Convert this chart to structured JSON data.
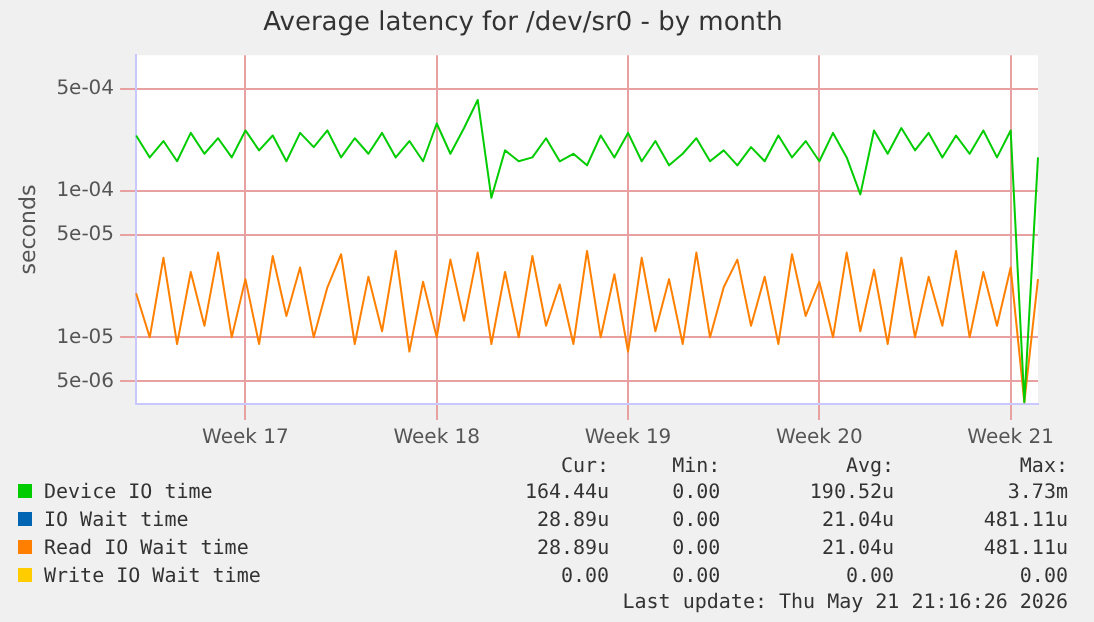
{
  "chart_data": {
    "type": "line",
    "title": "Average latency for /dev/sr0 - by month",
    "ylabel": "seconds",
    "categories": [
      null,
      null,
      null,
      null,
      null,
      null,
      null,
      null,
      "Week 17",
      null,
      null,
      null,
      null,
      null,
      null,
      null,
      null,
      null,
      null,
      null,
      null,
      null,
      "Week 18",
      null,
      null,
      null,
      null,
      null,
      null,
      null,
      null,
      null,
      null,
      null,
      null,
      null,
      "Week 19",
      null,
      null,
      null,
      null,
      null,
      null,
      null,
      null,
      null,
      null,
      null,
      null,
      null,
      "Week 20",
      null,
      null,
      null,
      null,
      null,
      null,
      null,
      null,
      null,
      null,
      null,
      null,
      null,
      "Week 21",
      null,
      null
    ],
    "ylim": [
      3.5e-06,
      0.00085
    ],
    "log": true,
    "yticks": [
      {
        "value": 5e-06,
        "label": "5e-06"
      },
      {
        "value": 1e-05,
        "label": "1e-05"
      },
      {
        "value": 5e-05,
        "label": "5e-05"
      },
      {
        "value": 0.0001,
        "label": "1e-04"
      },
      {
        "value": 0.0005,
        "label": "5e-04"
      }
    ],
    "grid": true,
    "legend": "bottom",
    "marker": "none",
    "line_style": "solid",
    "series": [
      {
        "name": "Device IO time",
        "color": "#00cc00",
        "values": [
          0.00024,
          0.00017,
          0.00022,
          0.00016,
          0.00025,
          0.00018,
          0.00023,
          0.00017,
          0.00026,
          0.00019,
          0.00024,
          0.00016,
          0.00025,
          0.0002,
          0.00026,
          0.00017,
          0.00023,
          0.00018,
          0.00025,
          0.00017,
          0.00022,
          0.00016,
          0.00029,
          0.00018,
          0.00027,
          0.00042,
          9e-05,
          0.00019,
          0.00016,
          0.00017,
          0.00023,
          0.00016,
          0.00018,
          0.00015,
          0.00024,
          0.00017,
          0.00025,
          0.00016,
          0.00022,
          0.00015,
          0.00018,
          0.00023,
          0.00016,
          0.00019,
          0.00015,
          0.0002,
          0.00016,
          0.00024,
          0.00017,
          0.00022,
          0.00016,
          0.00025,
          0.00017,
          9.5e-05,
          0.00026,
          0.00018,
          0.00027,
          0.00019,
          0.00025,
          0.00017,
          0.00024,
          0.00018,
          0.00026,
          0.00017,
          0.00026,
          3.6e-06,
          0.00017
        ]
      },
      {
        "name": "IO Wait time",
        "color": "#0066b3",
        "values": [
          null,
          null,
          null,
          null,
          null,
          null,
          null,
          null,
          null,
          null,
          null,
          null,
          null,
          null,
          null,
          null,
          null,
          null,
          null,
          null,
          null,
          null,
          null,
          null,
          null,
          null,
          null,
          null,
          null,
          null,
          null,
          null,
          null,
          null,
          null,
          null,
          null,
          null,
          null,
          null,
          null,
          null,
          null,
          null,
          null,
          null,
          null,
          null,
          null,
          null,
          null,
          null,
          null,
          null,
          null,
          null,
          null,
          null,
          null,
          null,
          null,
          null,
          null,
          null,
          null,
          null,
          null
        ]
      },
      {
        "name": "Read IO Wait time",
        "color": "#ff8000",
        "values": [
          2e-05,
          1e-05,
          3.5e-05,
          9e-06,
          2.8e-05,
          1.2e-05,
          3.8e-05,
          1e-05,
          2.5e-05,
          9e-06,
          3.6e-05,
          1.4e-05,
          3e-05,
          1e-05,
          2.2e-05,
          3.7e-05,
          9e-06,
          2.6e-05,
          1.1e-05,
          3.9e-05,
          8e-06,
          2.4e-05,
          1e-05,
          3.4e-05,
          1.3e-05,
          3.8e-05,
          9e-06,
          2.8e-05,
          1e-05,
          3.6e-05,
          1.2e-05,
          2.3e-05,
          9e-06,
          3.9e-05,
          1e-05,
          2.7e-05,
          8e-06,
          3.5e-05,
          1.1e-05,
          2.5e-05,
          9e-06,
          3.8e-05,
          1e-05,
          2.2e-05,
          3.4e-05,
          1.2e-05,
          2.6e-05,
          9e-06,
          3.7e-05,
          1.4e-05,
          2.4e-05,
          1e-05,
          3.8e-05,
          1.1e-05,
          2.9e-05,
          9e-06,
          3.5e-05,
          1e-05,
          2.6e-05,
          1.2e-05,
          3.9e-05,
          1e-05,
          2.8e-05,
          1.2e-05,
          3e-05,
          3.6e-06,
          2.5e-05
        ]
      },
      {
        "name": "Write IO Wait time",
        "color": "#ffcc00",
        "values": [
          null,
          null,
          null,
          null,
          null,
          null,
          null,
          null,
          null,
          null,
          null,
          null,
          null,
          null,
          null,
          null,
          null,
          null,
          null,
          null,
          null,
          null,
          null,
          null,
          null,
          null,
          null,
          null,
          null,
          null,
          null,
          null,
          null,
          null,
          null,
          null,
          null,
          null,
          null,
          null,
          null,
          null,
          null,
          null,
          null,
          null,
          null,
          null,
          null,
          null,
          null,
          null,
          null,
          null,
          null,
          null,
          null,
          null,
          null,
          null,
          null,
          null,
          null,
          null,
          null,
          null,
          null
        ]
      }
    ],
    "annotations": [
      "Cur:",
      "Min:",
      "Avg:",
      "Max:",
      "164.44u",
      "0.00",
      "190.52u",
      "3.73m",
      "28.89u",
      "0.00",
      "21.04u",
      "481.11u",
      "28.89u",
      "0.00",
      "21.04u",
      "481.11u",
      "0.00",
      "0.00",
      "0.00",
      "0.00",
      "Last update: Thu May 21 21:16:26 2026"
    ]
  }
}
